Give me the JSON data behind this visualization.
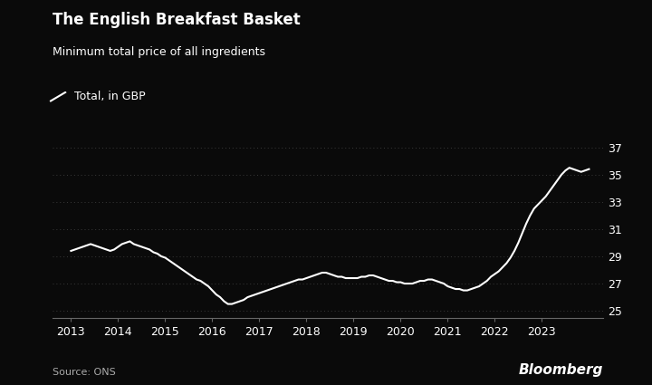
{
  "title": "The English Breakfast Basket",
  "subtitle": "Minimum total price of all ingredients",
  "legend_label": "Total, in GBP",
  "source": "Source: ONS",
  "watermark": "Bloomberg",
  "background_color": "#0a0a0a",
  "text_color": "#ffffff",
  "line_color": "#ffffff",
  "grid_color": "#3a3a3a",
  "ylim": [
    24.5,
    37.5
  ],
  "yticks": [
    25,
    27,
    29,
    31,
    33,
    35,
    37
  ],
  "xlim_start": 2012.6,
  "xlim_end": 2024.3,
  "xtick_labels": [
    "2013",
    "2014",
    "2015",
    "2016",
    "2017",
    "2018",
    "2019",
    "2020",
    "2021",
    "2022",
    "2023"
  ],
  "xtick_positions": [
    2013,
    2014,
    2015,
    2016,
    2017,
    2018,
    2019,
    2020,
    2021,
    2022,
    2023
  ],
  "dates": [
    2013.0,
    2013.083,
    2013.167,
    2013.25,
    2013.333,
    2013.417,
    2013.5,
    2013.583,
    2013.667,
    2013.75,
    2013.833,
    2013.917,
    2014.0,
    2014.083,
    2014.167,
    2014.25,
    2014.333,
    2014.417,
    2014.5,
    2014.583,
    2014.667,
    2014.75,
    2014.833,
    2014.917,
    2015.0,
    2015.083,
    2015.167,
    2015.25,
    2015.333,
    2015.417,
    2015.5,
    2015.583,
    2015.667,
    2015.75,
    2015.833,
    2015.917,
    2016.0,
    2016.083,
    2016.167,
    2016.25,
    2016.333,
    2016.417,
    2016.5,
    2016.583,
    2016.667,
    2016.75,
    2016.833,
    2016.917,
    2017.0,
    2017.083,
    2017.167,
    2017.25,
    2017.333,
    2017.417,
    2017.5,
    2017.583,
    2017.667,
    2017.75,
    2017.833,
    2017.917,
    2018.0,
    2018.083,
    2018.167,
    2018.25,
    2018.333,
    2018.417,
    2018.5,
    2018.583,
    2018.667,
    2018.75,
    2018.833,
    2018.917,
    2019.0,
    2019.083,
    2019.167,
    2019.25,
    2019.333,
    2019.417,
    2019.5,
    2019.583,
    2019.667,
    2019.75,
    2019.833,
    2019.917,
    2020.0,
    2020.083,
    2020.167,
    2020.25,
    2020.333,
    2020.417,
    2020.5,
    2020.583,
    2020.667,
    2020.75,
    2020.833,
    2020.917,
    2021.0,
    2021.083,
    2021.167,
    2021.25,
    2021.333,
    2021.417,
    2021.5,
    2021.583,
    2021.667,
    2021.75,
    2021.833,
    2021.917,
    2022.0,
    2022.083,
    2022.167,
    2022.25,
    2022.333,
    2022.417,
    2022.5,
    2022.583,
    2022.667,
    2022.75,
    2022.833,
    2022.917,
    2023.0,
    2023.083,
    2023.167,
    2023.25,
    2023.333,
    2023.417,
    2023.5,
    2023.583,
    2023.667,
    2023.75,
    2023.833,
    2023.917,
    2024.0
  ],
  "values": [
    29.4,
    29.5,
    29.6,
    29.7,
    29.8,
    29.9,
    29.8,
    29.7,
    29.6,
    29.5,
    29.4,
    29.5,
    29.7,
    29.9,
    30.0,
    30.1,
    29.9,
    29.8,
    29.7,
    29.6,
    29.5,
    29.3,
    29.2,
    29.0,
    28.9,
    28.7,
    28.5,
    28.3,
    28.1,
    27.9,
    27.7,
    27.5,
    27.3,
    27.2,
    27.0,
    26.8,
    26.5,
    26.2,
    26.0,
    25.7,
    25.5,
    25.5,
    25.6,
    25.7,
    25.8,
    26.0,
    26.1,
    26.2,
    26.3,
    26.4,
    26.5,
    26.6,
    26.7,
    26.8,
    26.9,
    27.0,
    27.1,
    27.2,
    27.3,
    27.3,
    27.4,
    27.5,
    27.6,
    27.7,
    27.8,
    27.8,
    27.7,
    27.6,
    27.5,
    27.5,
    27.4,
    27.4,
    27.4,
    27.4,
    27.5,
    27.5,
    27.6,
    27.6,
    27.5,
    27.4,
    27.3,
    27.2,
    27.2,
    27.1,
    27.1,
    27.0,
    27.0,
    27.0,
    27.1,
    27.2,
    27.2,
    27.3,
    27.3,
    27.2,
    27.1,
    27.0,
    26.8,
    26.7,
    26.6,
    26.6,
    26.5,
    26.5,
    26.6,
    26.7,
    26.8,
    27.0,
    27.2,
    27.5,
    27.7,
    27.9,
    28.2,
    28.5,
    28.9,
    29.4,
    30.0,
    30.7,
    31.4,
    32.0,
    32.5,
    32.8,
    33.1,
    33.4,
    33.8,
    34.2,
    34.6,
    35.0,
    35.3,
    35.5,
    35.4,
    35.3,
    35.2,
    35.3,
    35.4
  ]
}
